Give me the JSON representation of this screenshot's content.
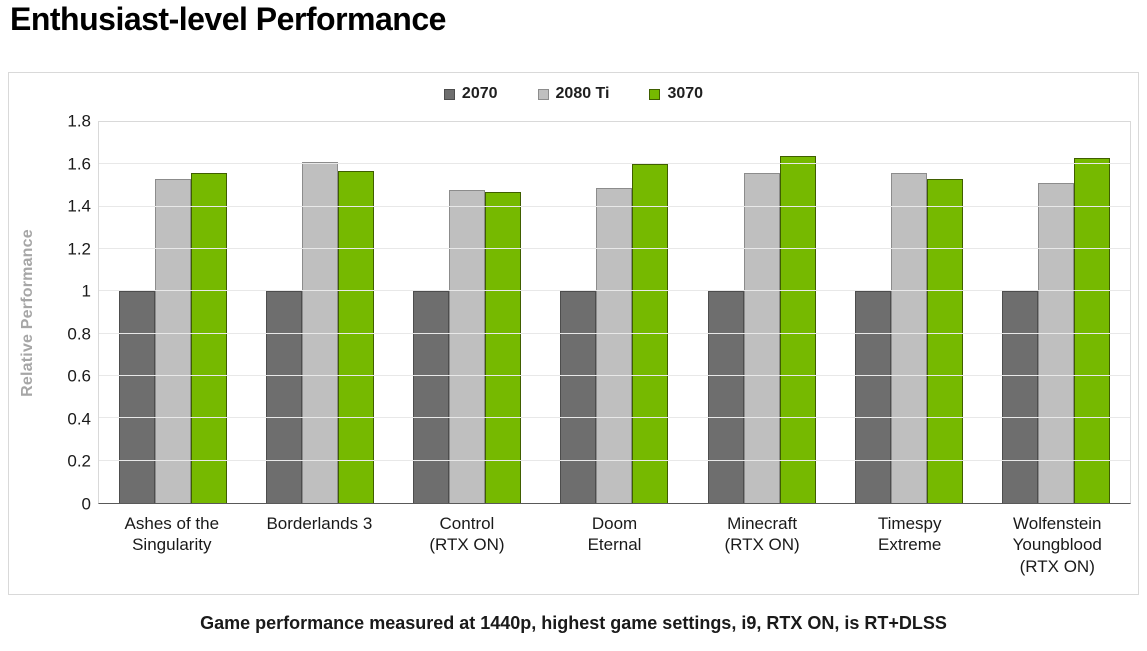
{
  "title": "Enthusiast-level Performance",
  "footer": "Game performance measured at 1440p, highest game settings, i9, RTX ON, is RT+DLSS",
  "colors": {
    "accent_green": "#76B900",
    "dark_gray": "#6E6E6E",
    "light_gray": "#BFBFBF",
    "axis_label_gray": "#A6A6A6"
  },
  "chart_data": {
    "type": "bar",
    "title": "Enthusiast-level Performance",
    "xlabel": "",
    "ylabel": "Relative Performance",
    "ylim": [
      0,
      1.8
    ],
    "ytick_step": 0.2,
    "grid": true,
    "legend_position": "top-center",
    "categories": [
      "Ashes of the\nSingularity",
      "Borderlands 3",
      "Control\n(RTX ON)",
      "Doom\nEternal",
      "Minecraft\n(RTX ON)",
      "Timespy\nExtreme",
      "Wolfenstein\nYoungblood\n(RTX ON)"
    ],
    "series": [
      {
        "name": "2070",
        "color": "#6E6E6E",
        "edge_color": "#4d4d4d",
        "values": [
          1.0,
          1.0,
          1.0,
          1.0,
          1.0,
          1.0,
          1.0
        ]
      },
      {
        "name": "2080 Ti",
        "color": "#BFBFBF",
        "edge_color": "#8c8c8c",
        "values": [
          1.53,
          1.61,
          1.48,
          1.49,
          1.56,
          1.56,
          1.51
        ]
      },
      {
        "name": "3070",
        "color": "#76B900",
        "edge_color": "#3f5e00",
        "values": [
          1.56,
          1.57,
          1.47,
          1.6,
          1.64,
          1.53,
          1.63
        ]
      }
    ]
  }
}
